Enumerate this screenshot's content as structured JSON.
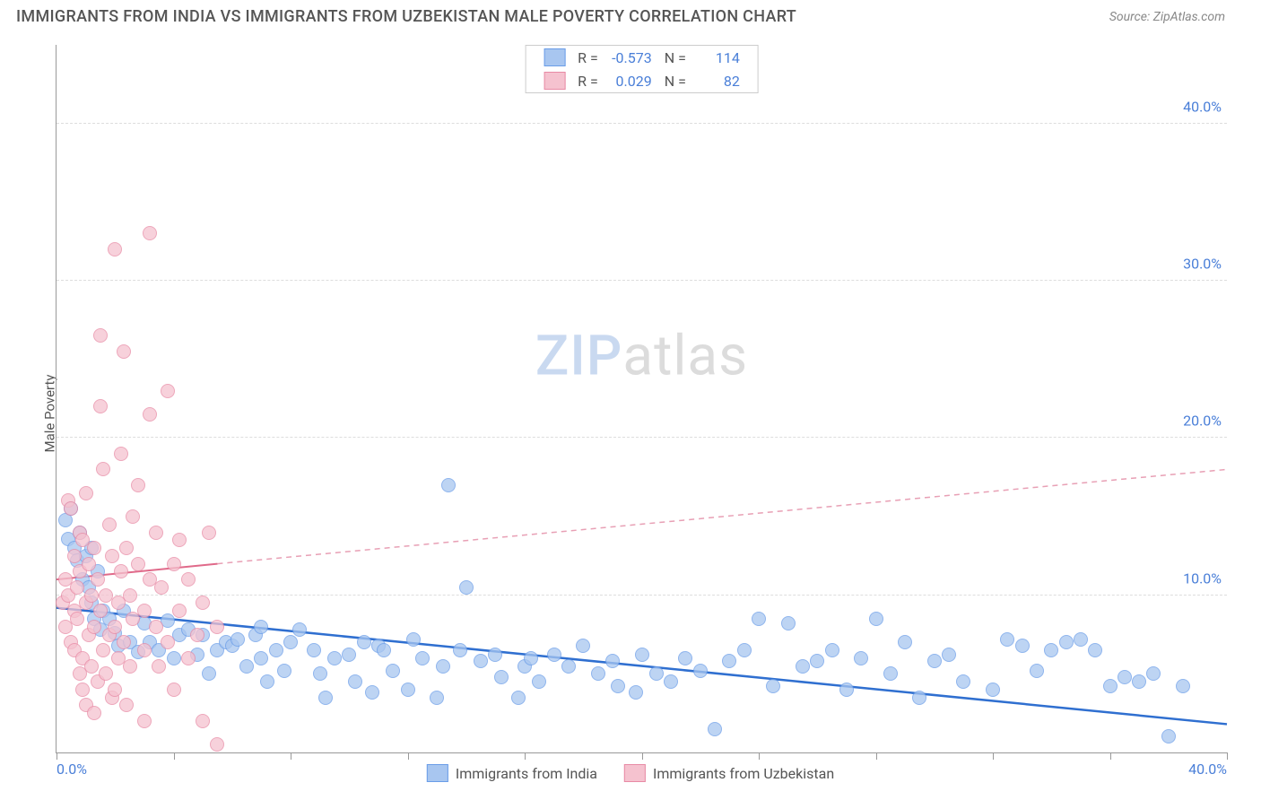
{
  "title": "IMMIGRANTS FROM INDIA VS IMMIGRANTS FROM UZBEKISTAN MALE POVERTY CORRELATION CHART",
  "source": "Source: ZipAtlas.com",
  "ylabel": "Male Poverty",
  "watermark": {
    "part1": "ZIP",
    "part2": "atlas"
  },
  "chart": {
    "type": "scatter-correlation",
    "xlim": [
      0,
      40
    ],
    "ylim": [
      0,
      45
    ],
    "ygrid": [
      10,
      20,
      30,
      40
    ],
    "yticklabels": [
      "10.0%",
      "20.0%",
      "30.0%",
      "40.0%"
    ],
    "xticks": [
      0,
      4,
      8,
      12,
      16,
      20,
      24,
      28,
      32,
      36,
      40
    ],
    "xticklabels": {
      "0": "0.0%",
      "40": "40.0%"
    },
    "grid_color": "#dddddd",
    "axis_color": "#999999",
    "tick_label_color": "#4a7fd8",
    "background_color": "#ffffff",
    "point_radius": 8,
    "series": [
      {
        "name": "Immigrants from India",
        "key": "india",
        "R": "-0.573",
        "N": "114",
        "fill": "#a8c6f0",
        "stroke": "#6a9de8",
        "trend": {
          "x1": 0,
          "y1": 9.2,
          "x2": 40,
          "y2": 1.8,
          "color": "#2f6fd0",
          "width": 2.5,
          "dash": ""
        },
        "points": [
          [
            0.3,
            14.8
          ],
          [
            0.4,
            13.6
          ],
          [
            0.5,
            15.5
          ],
          [
            0.6,
            13.0
          ],
          [
            0.7,
            12.2
          ],
          [
            0.8,
            14.0
          ],
          [
            0.9,
            11.0
          ],
          [
            1.0,
            12.5
          ],
          [
            1.1,
            10.5
          ],
          [
            1.2,
            13.0
          ],
          [
            1.2,
            9.5
          ],
          [
            1.3,
            8.5
          ],
          [
            1.4,
            11.5
          ],
          [
            1.5,
            7.8
          ],
          [
            1.6,
            9.0
          ],
          [
            1.8,
            8.5
          ],
          [
            2.0,
            7.6
          ],
          [
            2.1,
            6.8
          ],
          [
            2.3,
            9.0
          ],
          [
            2.5,
            7.0
          ],
          [
            2.8,
            6.4
          ],
          [
            3.0,
            8.2
          ],
          [
            3.2,
            7.0
          ],
          [
            3.5,
            6.5
          ],
          [
            3.8,
            8.4
          ],
          [
            4.0,
            6.0
          ],
          [
            4.2,
            7.5
          ],
          [
            4.5,
            7.8
          ],
          [
            4.8,
            6.2
          ],
          [
            5.0,
            7.5
          ],
          [
            5.2,
            5.0
          ],
          [
            5.5,
            6.5
          ],
          [
            5.8,
            7.0
          ],
          [
            6.0,
            6.8
          ],
          [
            6.2,
            7.2
          ],
          [
            6.5,
            5.5
          ],
          [
            6.8,
            7.5
          ],
          [
            7.0,
            6.0
          ],
          [
            7.0,
            8.0
          ],
          [
            7.2,
            4.5
          ],
          [
            7.5,
            6.5
          ],
          [
            7.8,
            5.2
          ],
          [
            8.0,
            7.0
          ],
          [
            8.3,
            7.8
          ],
          [
            8.8,
            6.5
          ],
          [
            9.0,
            5.0
          ],
          [
            9.2,
            3.5
          ],
          [
            9.5,
            6.0
          ],
          [
            10.0,
            6.2
          ],
          [
            10.2,
            4.5
          ],
          [
            10.5,
            7.0
          ],
          [
            10.8,
            3.8
          ],
          [
            11.0,
            6.8
          ],
          [
            11.2,
            6.5
          ],
          [
            11.5,
            5.2
          ],
          [
            12.0,
            4.0
          ],
          [
            12.2,
            7.2
          ],
          [
            12.5,
            6.0
          ],
          [
            13.0,
            3.5
          ],
          [
            13.2,
            5.5
          ],
          [
            13.4,
            17.0
          ],
          [
            13.8,
            6.5
          ],
          [
            14.0,
            10.5
          ],
          [
            14.5,
            5.8
          ],
          [
            15.0,
            6.2
          ],
          [
            15.2,
            4.8
          ],
          [
            15.8,
            3.5
          ],
          [
            16.0,
            5.5
          ],
          [
            16.2,
            6.0
          ],
          [
            16.5,
            4.5
          ],
          [
            17.0,
            6.2
          ],
          [
            17.5,
            5.5
          ],
          [
            18.0,
            6.8
          ],
          [
            18.5,
            5.0
          ],
          [
            19.0,
            5.8
          ],
          [
            19.2,
            4.2
          ],
          [
            19.8,
            3.8
          ],
          [
            20.0,
            6.2
          ],
          [
            20.5,
            5.0
          ],
          [
            21.0,
            4.5
          ],
          [
            21.5,
            6.0
          ],
          [
            22.0,
            5.2
          ],
          [
            22.5,
            1.5
          ],
          [
            23.0,
            5.8
          ],
          [
            23.5,
            6.5
          ],
          [
            24.0,
            8.5
          ],
          [
            24.5,
            4.2
          ],
          [
            25.0,
            8.2
          ],
          [
            25.5,
            5.5
          ],
          [
            26.0,
            5.8
          ],
          [
            26.5,
            6.5
          ],
          [
            27.0,
            4.0
          ],
          [
            27.5,
            6.0
          ],
          [
            28.0,
            8.5
          ],
          [
            28.5,
            5.0
          ],
          [
            29.0,
            7.0
          ],
          [
            29.5,
            3.5
          ],
          [
            30.0,
            5.8
          ],
          [
            30.5,
            6.2
          ],
          [
            31.0,
            4.5
          ],
          [
            32.0,
            4.0
          ],
          [
            32.5,
            7.2
          ],
          [
            33.0,
            6.8
          ],
          [
            33.5,
            5.2
          ],
          [
            34.0,
            6.5
          ],
          [
            34.5,
            7.0
          ],
          [
            35.0,
            7.2
          ],
          [
            35.5,
            6.5
          ],
          [
            36.0,
            4.2
          ],
          [
            36.5,
            4.8
          ],
          [
            37.0,
            4.5
          ],
          [
            37.5,
            5.0
          ],
          [
            38.0,
            1.0
          ],
          [
            38.5,
            4.2
          ]
        ]
      },
      {
        "name": "Immigrants from Uzbekistan",
        "key": "uzbekistan",
        "R": "0.029",
        "N": "82",
        "fill": "#f5c2cf",
        "stroke": "#e88aa5",
        "trend_solid": {
          "x1": 0,
          "y1": 11.0,
          "x2": 5.5,
          "y2": 12.0,
          "color": "#e06a8a",
          "width": 2,
          "dash": ""
        },
        "trend_dashed": {
          "x1": 5.5,
          "y1": 12.0,
          "x2": 40,
          "y2": 18.0,
          "color": "#e8a0b5",
          "width": 1.5,
          "dash": "6,5"
        },
        "points": [
          [
            0.2,
            9.5
          ],
          [
            0.3,
            8.0
          ],
          [
            0.3,
            11.0
          ],
          [
            0.4,
            10.0
          ],
          [
            0.4,
            16.0
          ],
          [
            0.5,
            7.0
          ],
          [
            0.5,
            15.5
          ],
          [
            0.6,
            6.5
          ],
          [
            0.6,
            9.0
          ],
          [
            0.6,
            12.5
          ],
          [
            0.7,
            8.5
          ],
          [
            0.7,
            10.5
          ],
          [
            0.8,
            5.0
          ],
          [
            0.8,
            11.5
          ],
          [
            0.8,
            14.0
          ],
          [
            0.9,
            4.0
          ],
          [
            0.9,
            6.0
          ],
          [
            0.9,
            13.5
          ],
          [
            1.0,
            9.5
          ],
          [
            1.0,
            16.5
          ],
          [
            1.0,
            3.0
          ],
          [
            1.1,
            7.5
          ],
          [
            1.1,
            12.0
          ],
          [
            1.2,
            5.5
          ],
          [
            1.2,
            10.0
          ],
          [
            1.3,
            8.0
          ],
          [
            1.3,
            2.5
          ],
          [
            1.3,
            13.0
          ],
          [
            1.4,
            4.5
          ],
          [
            1.4,
            11.0
          ],
          [
            1.5,
            9.0
          ],
          [
            1.5,
            22.0
          ],
          [
            1.5,
            26.5
          ],
          [
            1.6,
            6.5
          ],
          [
            1.6,
            18.0
          ],
          [
            1.7,
            5.0
          ],
          [
            1.7,
            10.0
          ],
          [
            1.8,
            7.5
          ],
          [
            1.8,
            14.5
          ],
          [
            1.9,
            3.5
          ],
          [
            1.9,
            12.5
          ],
          [
            2.0,
            8.0
          ],
          [
            2.0,
            4.0
          ],
          [
            2.0,
            32.0
          ],
          [
            2.1,
            9.5
          ],
          [
            2.1,
            6.0
          ],
          [
            2.2,
            11.5
          ],
          [
            2.2,
            19.0
          ],
          [
            2.3,
            25.5
          ],
          [
            2.3,
            7.0
          ],
          [
            2.4,
            13.0
          ],
          [
            2.4,
            3.0
          ],
          [
            2.5,
            10.0
          ],
          [
            2.5,
            5.5
          ],
          [
            2.6,
            8.5
          ],
          [
            2.6,
            15.0
          ],
          [
            2.8,
            12.0
          ],
          [
            2.8,
            17.0
          ],
          [
            3.0,
            9.0
          ],
          [
            3.0,
            6.5
          ],
          [
            3.0,
            2.0
          ],
          [
            3.2,
            11.0
          ],
          [
            3.2,
            21.5
          ],
          [
            3.2,
            33.0
          ],
          [
            3.4,
            8.0
          ],
          [
            3.4,
            14.0
          ],
          [
            3.5,
            5.5
          ],
          [
            3.6,
            10.5
          ],
          [
            3.8,
            7.0
          ],
          [
            3.8,
            23.0
          ],
          [
            4.0,
            12.0
          ],
          [
            4.0,
            4.0
          ],
          [
            4.2,
            13.5
          ],
          [
            4.2,
            9.0
          ],
          [
            4.5,
            6.0
          ],
          [
            4.5,
            11.0
          ],
          [
            4.8,
            7.5
          ],
          [
            5.0,
            2.0
          ],
          [
            5.0,
            9.5
          ],
          [
            5.2,
            14.0
          ],
          [
            5.5,
            8.0
          ],
          [
            5.5,
            0.5
          ]
        ]
      }
    ]
  },
  "legend_top": [
    {
      "series": 0,
      "R_label": "R =",
      "N_label": "N ="
    },
    {
      "series": 1,
      "R_label": "R =",
      "N_label": "N ="
    }
  ]
}
